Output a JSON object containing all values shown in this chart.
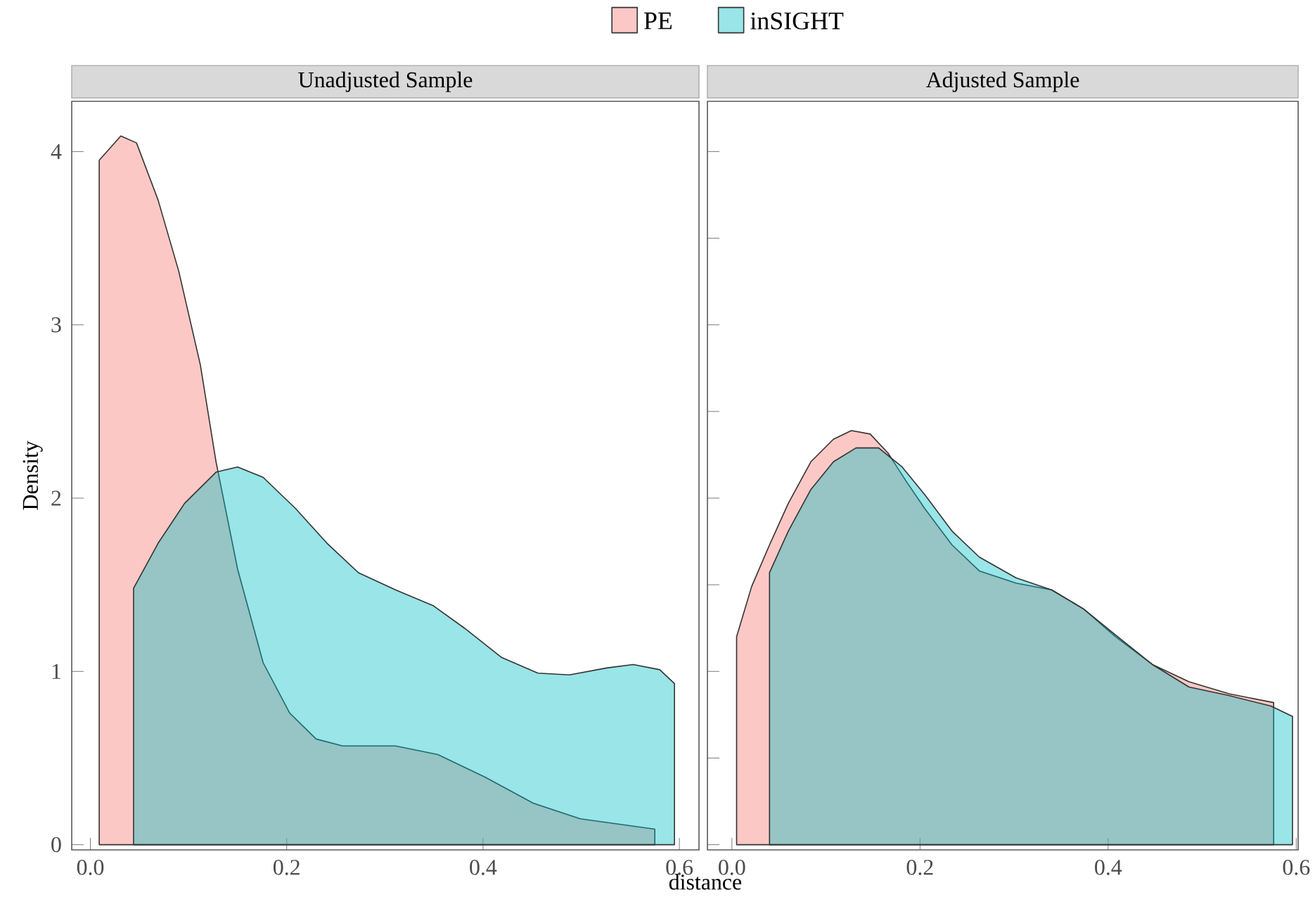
{
  "chart_data": [
    {
      "type": "area",
      "title": "Unadjusted Sample",
      "xlabel": "distance",
      "ylabel": "Density",
      "xlim": [
        -0.019,
        0.62
      ],
      "ylim": [
        -0.03,
        4.29
      ],
      "xticks": [
        {
          "value": 0,
          "label": "0.0"
        },
        0.2,
        0.4,
        0.6
      ],
      "yticks": [
        0,
        1,
        2,
        3,
        4
      ],
      "grid": false,
      "legend": "top",
      "series": [
        {
          "name": "PE",
          "color": "#f8766d",
          "x": [
            0.009,
            0.009,
            0.031,
            0.047,
            0.069,
            0.09,
            0.112,
            0.128,
            0.15,
            0.176,
            0.203,
            0.23,
            0.257,
            0.311,
            0.354,
            0.402,
            0.451,
            0.499,
            0.575
          ],
          "values": [
            3.95,
            3.95,
            4.09,
            4.05,
            3.72,
            3.31,
            2.77,
            2.21,
            1.59,
            1.05,
            0.76,
            0.61,
            0.57,
            0.57,
            0.52,
            0.39,
            0.24,
            0.15,
            0.09
          ]
        },
        {
          "name": "inSIGHT",
          "color": "#00bfc4",
          "x": [
            0.044,
            0.069,
            0.096,
            0.128,
            0.15,
            0.176,
            0.209,
            0.241,
            0.273,
            0.311,
            0.349,
            0.381,
            0.419,
            0.456,
            0.488,
            0.526,
            0.553,
            0.58,
            0.595
          ],
          "values": [
            1.48,
            1.74,
            1.97,
            2.15,
            2.18,
            2.12,
            1.94,
            1.74,
            1.57,
            1.47,
            1.38,
            1.25,
            1.08,
            0.99,
            0.98,
            1.02,
            1.04,
            1.01,
            0.93
          ]
        }
      ]
    },
    {
      "type": "area",
      "title": "Adjusted Sample",
      "xlim": [
        -0.026,
        0.602
      ],
      "ylim": [
        -0.03,
        4.29
      ],
      "xticks": [
        {
          "value": 0,
          "label": "0.0"
        },
        0.2,
        0.4,
        0.6
      ],
      "tick_labels": "x",
      "grid": false,
      "series": [
        {
          "color": "#f8766d",
          "x": [
            0.005,
            0.021,
            0.04,
            0.06,
            0.084,
            0.108,
            0.127,
            0.147,
            0.166,
            0.185,
            0.205,
            0.234,
            0.263,
            0.302,
            0.34,
            0.374,
            0.408,
            0.447,
            0.486,
            0.529,
            0.576
          ],
          "values": [
            1.2,
            1.49,
            1.73,
            1.97,
            2.21,
            2.34,
            2.39,
            2.37,
            2.26,
            2.1,
            1.94,
            1.73,
            1.58,
            1.51,
            1.47,
            1.36,
            1.2,
            1.04,
            0.94,
            0.87,
            0.82
          ]
        },
        {
          "color": "#00bfc4",
          "x": [
            0.04,
            0.06,
            0.084,
            0.108,
            0.132,
            0.156,
            0.181,
            0.205,
            0.234,
            0.263,
            0.302,
            0.34,
            0.374,
            0.408,
            0.447,
            0.486,
            0.529,
            0.573,
            0.596
          ],
          "values": [
            1.57,
            1.81,
            2.05,
            2.21,
            2.29,
            2.29,
            2.18,
            2.02,
            1.81,
            1.66,
            1.54,
            1.47,
            1.36,
            1.21,
            1.04,
            0.91,
            0.86,
            0.8,
            0.74
          ]
        }
      ]
    }
  ]
}
